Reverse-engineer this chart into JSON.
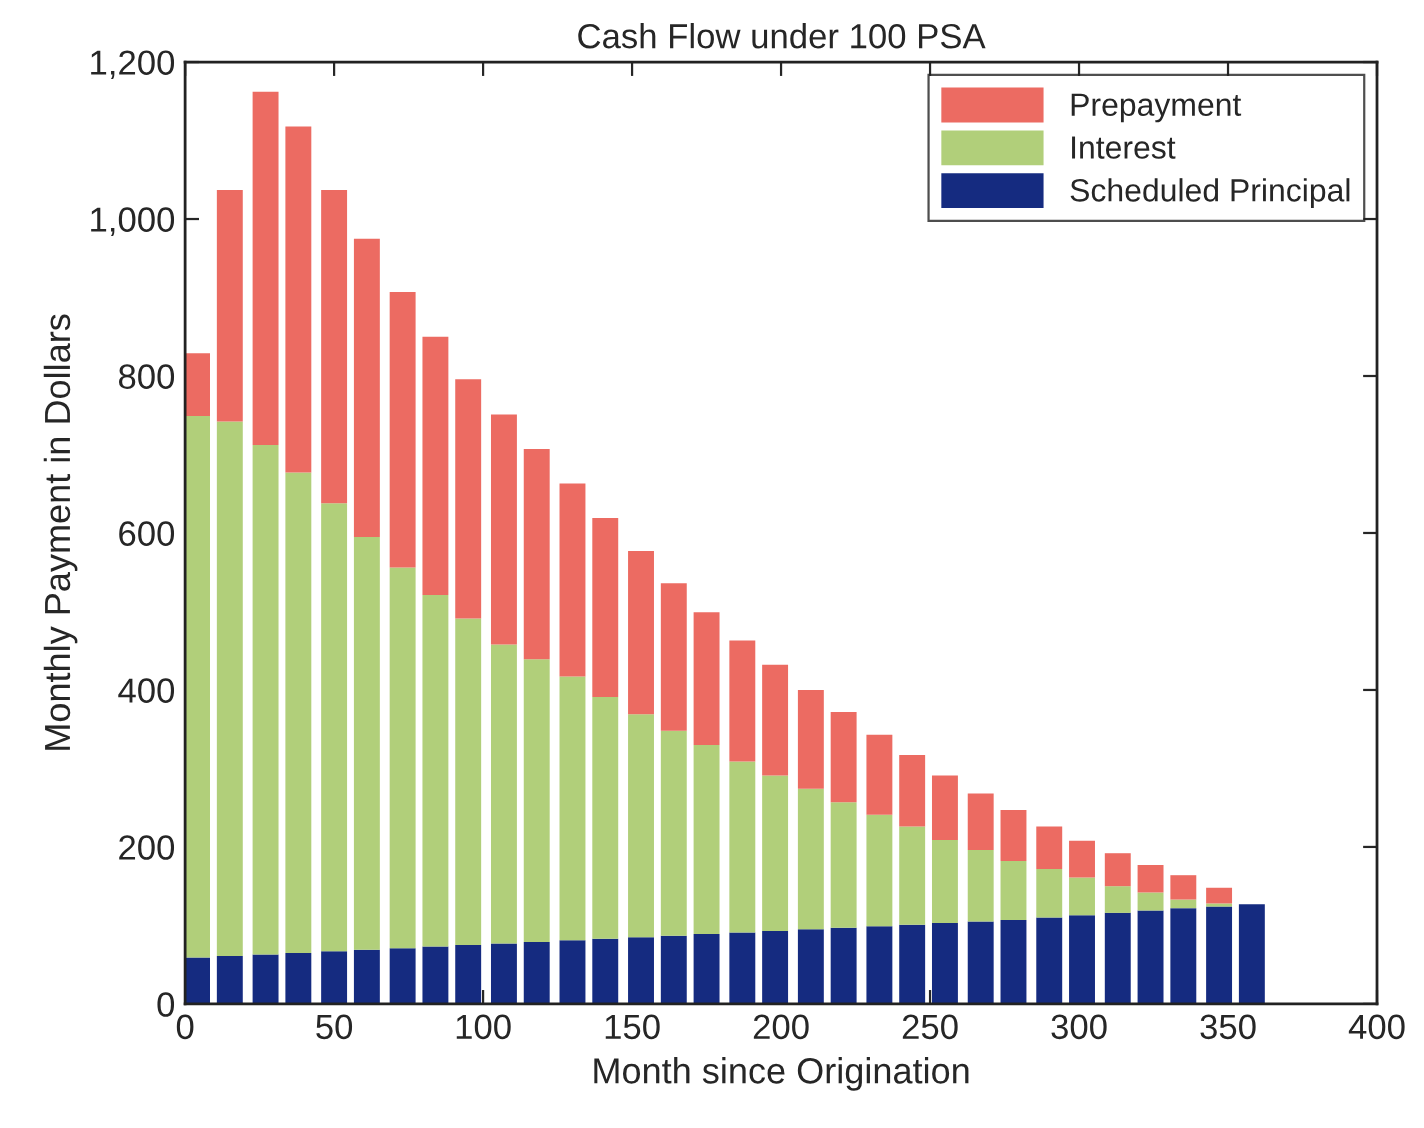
{
  "chart_data": {
    "type": "bar",
    "title": "Cash Flow under 100 PSA",
    "xlabel": "Month since Origination",
    "ylabel": "Monthly Payment in Dollars",
    "x": [
      4,
      15,
      27,
      38,
      50,
      61,
      73,
      84,
      95,
      107,
      118,
      130,
      141,
      153,
      164,
      175,
      187,
      198,
      210,
      221,
      233,
      244,
      255,
      267,
      278,
      290,
      301,
      313,
      324,
      335,
      347,
      358
    ],
    "stacked": true,
    "series": [
      {
        "name": "Scheduled Principal",
        "color": "#152b80",
        "values": [
          59,
          61,
          63,
          65,
          67,
          69,
          71,
          73,
          75,
          77,
          79,
          81,
          83,
          85,
          87,
          89,
          91,
          93,
          95,
          97,
          99,
          101,
          103,
          105,
          107,
          110,
          113,
          116,
          119,
          122,
          124,
          127
        ]
      },
      {
        "name": "Interest",
        "color": "#b1cf7a",
        "values": [
          690,
          681,
          649,
          612,
          571,
          526,
          485,
          448,
          416,
          381,
          360,
          336,
          308,
          284,
          261,
          241,
          218,
          198,
          179,
          160,
          142,
          125,
          106,
          91,
          75,
          62,
          48,
          34,
          23,
          11,
          4,
          0
        ]
      },
      {
        "name": "Prepayment",
        "color": "#ec6b62",
        "values": [
          80,
          295,
          450,
          441,
          399,
          380,
          351,
          329,
          305,
          293,
          268,
          246,
          228,
          208,
          188,
          169,
          154,
          141,
          126,
          115,
          102,
          91,
          82,
          72,
          65,
          54,
          47,
          42,
          35,
          31,
          20,
          0
        ]
      }
    ],
    "xlim": [
      0,
      400
    ],
    "xticks": [
      0,
      50,
      100,
      150,
      200,
      250,
      300,
      350,
      400
    ],
    "ylim": [
      0,
      1200
    ],
    "yticks": [
      0,
      {
        "value": 200,
        "label": "200"
      },
      {
        "value": 400,
        "label": "400"
      },
      {
        "value": 600,
        "label": "600"
      },
      {
        "value": 800,
        "label": "800"
      },
      {
        "value": 1000,
        "label": "1,000"
      },
      {
        "value": 1200,
        "label": "1,200"
      }
    ],
    "grid": false,
    "legend": "top right"
  }
}
